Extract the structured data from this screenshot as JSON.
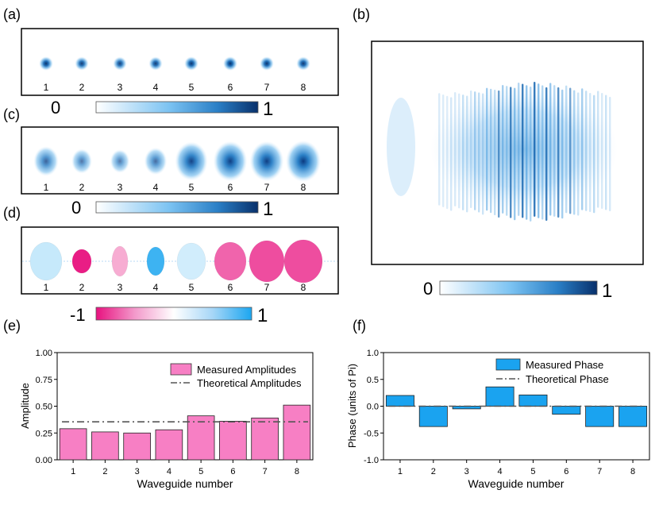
{
  "panels": {
    "a": {
      "label": "(a)",
      "spot_labels": [
        "1",
        "2",
        "3",
        "4",
        "5",
        "6",
        "7",
        "8"
      ],
      "spot_intensity": [
        0.95,
        0.85,
        0.8,
        0.85,
        0.95,
        1.0,
        0.95,
        0.9
      ]
    },
    "b": {
      "label": "(b)"
    },
    "c": {
      "label": "(c)",
      "spot_labels": [
        "1",
        "2",
        "3",
        "4",
        "5",
        "6",
        "7",
        "8"
      ],
      "spot_intensity": [
        0.55,
        0.35,
        0.3,
        0.45,
        0.9,
        0.95,
        0.95,
        1.0
      ]
    },
    "d": {
      "label": "(d)",
      "spot_labels": [
        "1",
        "2",
        "3",
        "4",
        "5",
        "6",
        "7",
        "8"
      ],
      "spot_value": [
        0.25,
        -0.95,
        -0.35,
        0.85,
        0.2,
        -0.65,
        -0.75,
        -0.75
      ]
    },
    "e": {
      "label": "(e)"
    },
    "f": {
      "label": "(f)"
    }
  },
  "colorbars": {
    "blue": {
      "min_label": "0",
      "max_label": "1"
    },
    "diverging": {
      "min_label": "-1",
      "max_label": "1"
    }
  },
  "colors": {
    "blue_dark": "#08306b",
    "blue_mid": "#2b8cd6",
    "pink": "#f77fc4",
    "pink_dark": "#e8117f",
    "bar_blue": "#1aa3f0",
    "theory_line": "#555555"
  },
  "chart_data": [
    {
      "type": "bar",
      "title": "",
      "xlabel": "Waveguide number",
      "ylabel": "Amplitude",
      "categories": [
        "1",
        "2",
        "3",
        "4",
        "5",
        "6",
        "7",
        "8"
      ],
      "ylim": [
        0,
        1
      ],
      "yticks": [
        "0.00",
        "0.25",
        "0.50",
        "0.75",
        "1.00"
      ],
      "series": [
        {
          "name": "Measured Amplitudes",
          "kind": "bar",
          "values": [
            0.29,
            0.26,
            0.25,
            0.28,
            0.41,
            0.36,
            0.39,
            0.51
          ]
        },
        {
          "name": "Theoretical Amplitudes",
          "kind": "line",
          "values": [
            0.354,
            0.354,
            0.354,
            0.354,
            0.354,
            0.354,
            0.354,
            0.354
          ]
        }
      ],
      "legend": "top-right"
    },
    {
      "type": "bar",
      "title": "",
      "xlabel": "Waveguide number",
      "ylabel": "Phase (units of Pi)",
      "categories": [
        "1",
        "2",
        "3",
        "4",
        "5",
        "6",
        "7",
        "8"
      ],
      "ylim": [
        -1,
        1
      ],
      "yticks": [
        "-1.0",
        "-0.5",
        "0.0",
        "0.5",
        "1.0"
      ],
      "series": [
        {
          "name": "Measured Phase",
          "kind": "bar",
          "values": [
            0.2,
            -0.38,
            -0.05,
            0.36,
            0.21,
            -0.15,
            -0.38,
            -0.38
          ]
        },
        {
          "name": "Theoretical Phase",
          "kind": "line",
          "values": [
            0,
            0,
            0,
            0,
            0,
            0,
            0,
            0
          ]
        }
      ],
      "legend": "top-right"
    }
  ]
}
